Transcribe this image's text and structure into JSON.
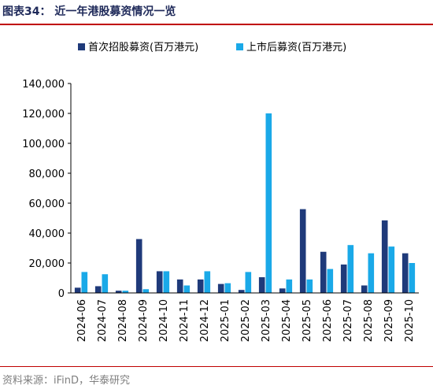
{
  "header": {
    "title": "图表34：  近一年港股募资情况一览"
  },
  "footer": {
    "source": "资料来源：iFinD，华泰研究"
  },
  "chart_data": {
    "type": "bar",
    "categories": [
      "2024-06",
      "2024-07",
      "2024-08",
      "2024-09",
      "2024-10",
      "2024-11",
      "2024-12",
      "2025-01",
      "2025-02",
      "2025-03",
      "2025-04",
      "2025-05",
      "2025-06",
      "2025-07",
      "2025-08",
      "2025-09",
      "2025-10"
    ],
    "series": [
      {
        "name": "首次招股募资(百万港元)",
        "color": "#1f3a7a",
        "values": [
          3500,
          4500,
          1500,
          36000,
          14500,
          9000,
          9000,
          6000,
          2000,
          10500,
          3000,
          56000,
          27500,
          19000,
          5000,
          48500,
          26500
        ]
      },
      {
        "name": "上市后募资(百万港元)",
        "color": "#1aa9e8",
        "values": [
          14000,
          12500,
          1500,
          2500,
          14500,
          5000,
          14500,
          6500,
          14000,
          120000,
          9000,
          9000,
          16000,
          32000,
          26500,
          31000,
          20000
        ]
      }
    ],
    "ylim": [
      0,
      140000
    ],
    "yticks": [
      "0",
      "20,000",
      "40,000",
      "60,000",
      "80,000",
      "100,000",
      "120,000",
      "140,000"
    ],
    "grid": false,
    "legend_position": "top"
  }
}
